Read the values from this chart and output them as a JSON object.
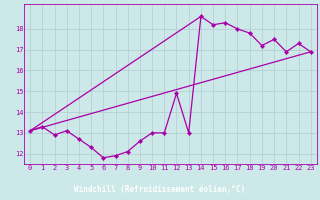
{
  "xlabel": "Windchill (Refroidissement éolien,°C)",
  "x_hours": [
    0,
    1,
    2,
    3,
    4,
    5,
    6,
    7,
    8,
    9,
    10,
    11,
    12,
    13,
    14,
    15,
    16,
    17,
    18,
    19,
    20,
    21,
    22,
    23
  ],
  "temp_line": [
    13.1,
    13.3,
    12.9,
    13.1,
    12.7,
    12.3,
    11.8,
    11.9,
    12.1,
    12.6,
    13.0,
    13.0,
    14.9,
    13.0,
    18.6,
    18.2,
    18.3,
    18.0,
    17.8,
    17.2,
    17.5,
    16.9,
    17.3,
    16.9
  ],
  "line1_x": [
    0,
    23
  ],
  "line1_y": [
    13.1,
    16.9
  ],
  "line2_x": [
    0,
    14
  ],
  "line2_y": [
    13.1,
    18.6
  ],
  "bg_color": "#cce8e8",
  "grid_color": "#b0cccc",
  "line_color": "#aa00aa",
  "xlabel_bg": "#7700aa",
  "xlabel_fg": "#ffffff",
  "ylim": [
    11.5,
    19.2
  ],
  "xlim": [
    -0.5,
    23.5
  ],
  "yticks": [
    12,
    13,
    14,
    15,
    16,
    17,
    18
  ],
  "xticks": [
    0,
    1,
    2,
    3,
    4,
    5,
    6,
    7,
    8,
    9,
    10,
    11,
    12,
    13,
    14,
    15,
    16,
    17,
    18,
    19,
    20,
    21,
    22,
    23
  ]
}
